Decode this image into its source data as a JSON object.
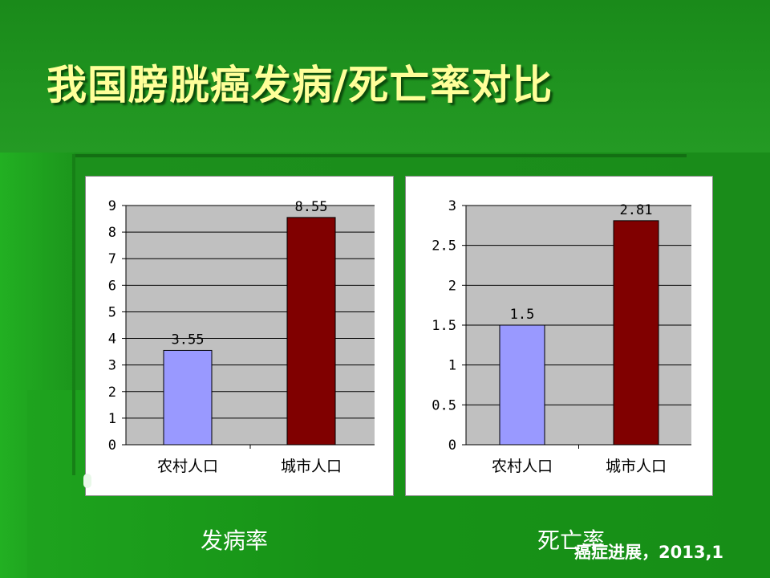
{
  "slide": {
    "title": "我国膀胱癌发病/死亡率对比",
    "source": "癌症进展，2013,1"
  },
  "colors": {
    "rural": "#9999ff",
    "urban": "#800000",
    "plot_bg": "#c0c0c0",
    "text_title": "#ffff99"
  },
  "chart_data": [
    {
      "type": "bar",
      "title": "",
      "caption": "发病率",
      "categories": [
        "农村人口",
        "城市人口"
      ],
      "values": [
        3.55,
        8.55
      ],
      "value_labels": [
        "3.55",
        "8.55"
      ],
      "ylim": [
        0,
        9
      ],
      "yticks": [
        0,
        1,
        2,
        3,
        4,
        5,
        6,
        7,
        8,
        9
      ],
      "ytick_labels": [
        "0",
        "1",
        "2",
        "3",
        "4",
        "5",
        "6",
        "7",
        "8",
        "9"
      ],
      "grid": true,
      "legend": "none",
      "xlabel": "",
      "ylabel": ""
    },
    {
      "type": "bar",
      "title": "",
      "caption": "死亡率",
      "categories": [
        "农村人口",
        "城市人口"
      ],
      "values": [
        1.5,
        2.81
      ],
      "value_labels": [
        "1.5",
        "2.81"
      ],
      "ylim": [
        0,
        3
      ],
      "yticks": [
        0,
        0.5,
        1,
        1.5,
        2,
        2.5,
        3
      ],
      "ytick_labels": [
        "0",
        "0.5",
        "1",
        "1.5",
        "2",
        "2.5",
        "3"
      ],
      "grid": true,
      "legend": "none",
      "xlabel": "",
      "ylabel": ""
    }
  ]
}
